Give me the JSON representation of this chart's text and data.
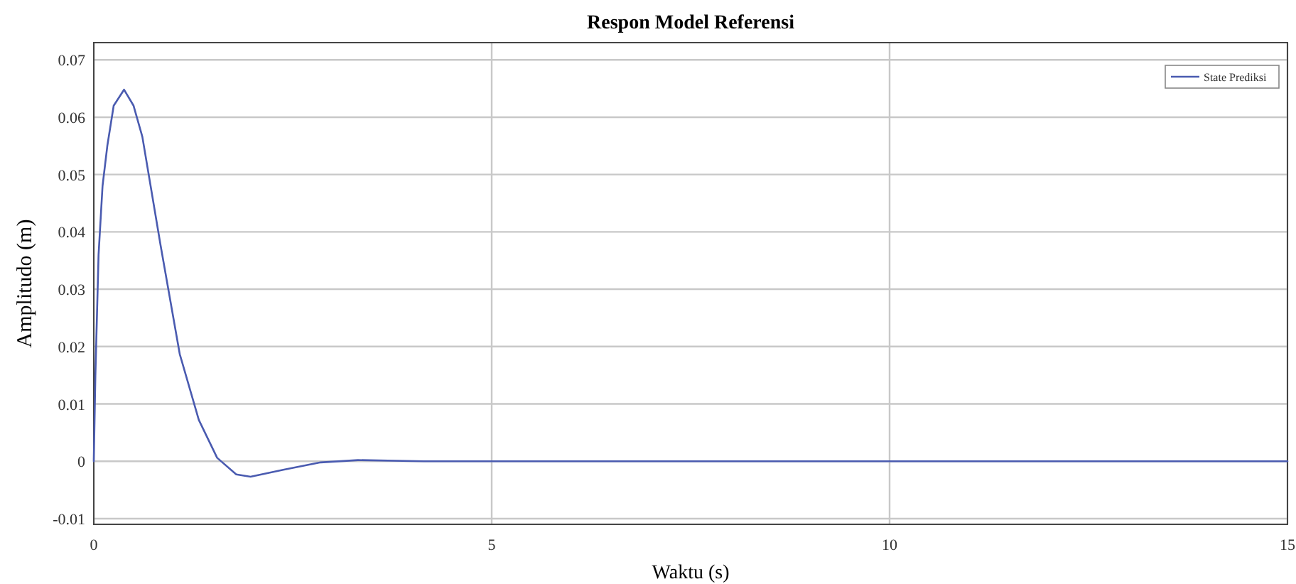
{
  "chart_data": {
    "type": "line",
    "title": "Respon Model Referensi",
    "xlabel": "Waktu (s)",
    "ylabel": "Amplitudo (m)",
    "xlim": [
      0,
      15
    ],
    "xticks": [
      0,
      5,
      10,
      15
    ],
    "ylim": [
      -0.011,
      0.073
    ],
    "yticks": [
      -0.01,
      0,
      0.01,
      0.02,
      0.03,
      0.04,
      0.05,
      0.06,
      0.07
    ],
    "grid": true,
    "legend": "top right",
    "line_style": "solid",
    "marker": "none",
    "series": [
      {
        "name": "State Prediksi",
        "color": "#4a5bb0",
        "x": [
          0,
          0.02,
          0.06,
          0.11,
          0.17,
          0.25,
          0.38,
          0.5,
          0.61,
          0.84,
          1.08,
          1.32,
          1.55,
          1.79,
          1.97,
          2.38,
          2.85,
          3.32,
          4.15,
          6,
          10,
          15
        ],
        "values": [
          0,
          0.015,
          0.036,
          0.048,
          0.055,
          0.062,
          0.0648,
          0.062,
          0.0566,
          0.0376,
          0.0187,
          0.0072,
          0.0006,
          -0.0023,
          -0.0027,
          -0.0015,
          -0.0002,
          0.0002,
          0,
          0,
          0,
          0
        ]
      }
    ]
  }
}
